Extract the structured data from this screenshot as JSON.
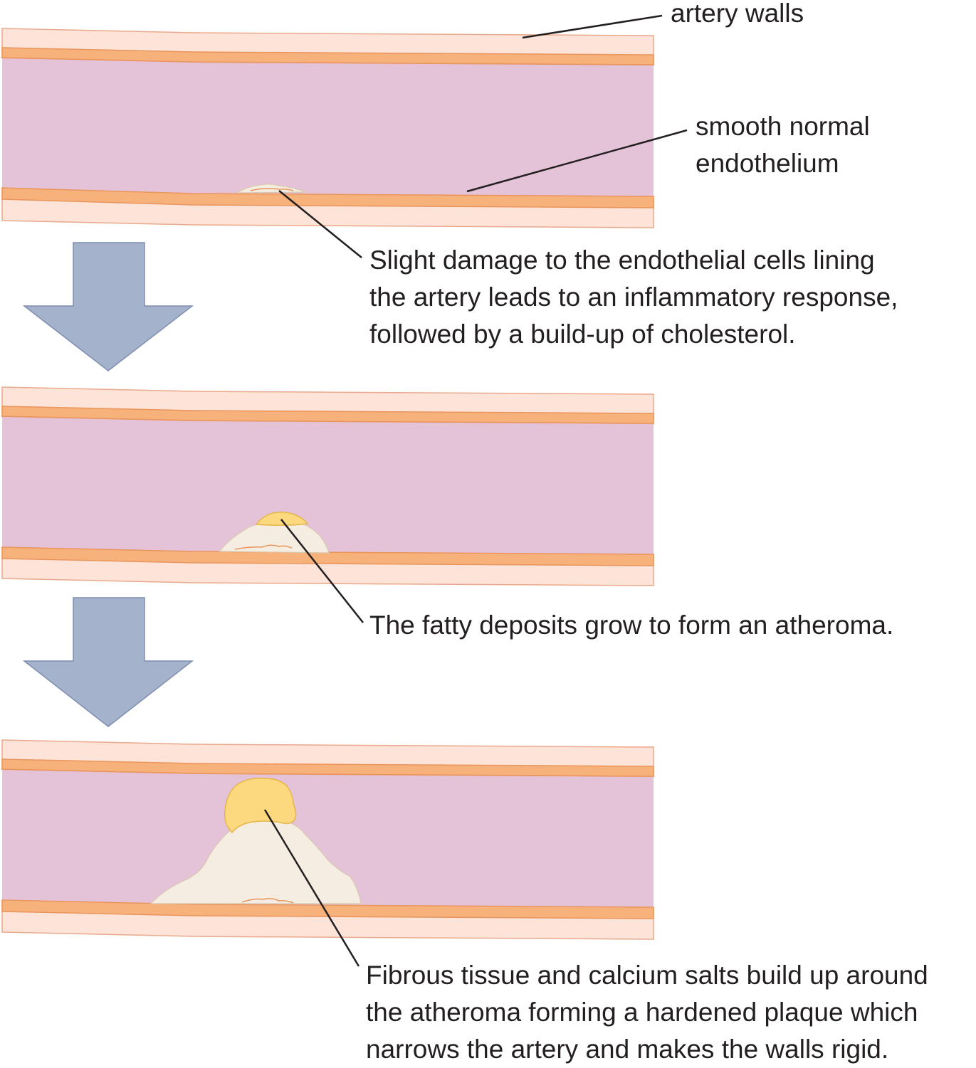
{
  "labels": {
    "artery_walls": "artery walls",
    "smooth_endothelium": "smooth normal\nendothelium",
    "stage1_caption": "Slight damage to the endothelial cells lining\nthe artery leads to an inflammatory response,\nfollowed by a build-up of cholesterol.",
    "stage2_caption": "The fatty deposits grow to form an atheroma.",
    "stage3_caption": "Fibrous tissue and calcium salts build up around\nthe atheroma forming a hardened plaque which\nnarrows the artery and makes the walls rigid."
  },
  "colors": {
    "lumen": "#e4c3d8",
    "wall_outer": "#fde3d8",
    "wall_band": "#f7b17b",
    "fatty_deposit": "#fcd97e",
    "fibrous_plaque": "#f5ede1",
    "arrow": "#a5b2cc",
    "text": "#231f20"
  },
  "icons": {
    "flow_arrow": "arrow-down-icon"
  }
}
